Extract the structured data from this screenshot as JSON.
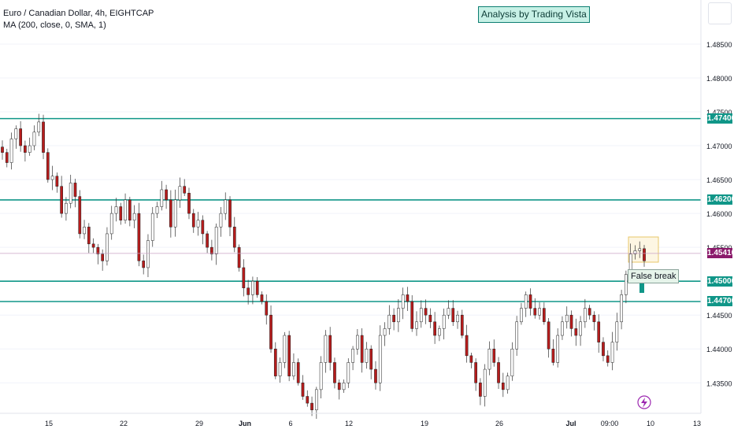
{
  "header": {
    "symbol_title": "Euro / Canadian Dollar, 4h, EIGHTCAP",
    "indicator": "MA (200, close, 0, SMA, 1)",
    "badge": "Analysis by Trading Vista"
  },
  "annotation": {
    "false_break_label": "False break"
  },
  "colors": {
    "level_line": "#109688",
    "up": "#ffffff",
    "down": "#b71c1c",
    "current_price_bg": "#8b1a6b"
  },
  "icons": {
    "bolt": "lightning-icon",
    "arrow": "up-arrow-icon"
  },
  "chart_data": {
    "type": "candlestick",
    "ylim": [
      1.4305,
      1.4915
    ],
    "y_ticks": [
      1.435,
      1.44,
      1.445,
      1.45,
      1.455,
      1.46,
      1.465,
      1.47,
      1.475,
      1.48,
      1.485
    ],
    "y_tick_labels": [
      "1.43500",
      "1.44000",
      "1.44500",
      "1.45000",
      "1.45500",
      "1.46000",
      "1.46500",
      "1.47000",
      "1.47500",
      "1.48000",
      "1.48500"
    ],
    "x_tick_labels": [
      "15",
      "22",
      "29",
      "Jun",
      "6",
      "12",
      "19",
      "26",
      "Jul",
      "09:00",
      "10",
      "13"
    ],
    "levels": [
      {
        "value": 1.474,
        "label": "1.47400"
      },
      {
        "value": 1.462,
        "label": "1.46200"
      },
      {
        "value": 1.45,
        "label": "1.45000"
      },
      {
        "value": 1.447,
        "label": "1.44700"
      }
    ],
    "current_price": {
      "value": 1.4541,
      "label": "1.45410"
    },
    "closes": [
      1.469,
      1.4675,
      1.471,
      1.4725,
      1.47,
      1.469,
      1.47,
      1.472,
      1.4735,
      1.469,
      1.465,
      1.4655,
      1.464,
      1.46,
      1.4615,
      1.4645,
      1.4625,
      1.457,
      1.458,
      1.4555,
      1.455,
      1.454,
      1.453,
      1.457,
      1.46,
      1.461,
      1.459,
      1.462,
      1.459,
      1.46,
      1.453,
      1.452,
      1.456,
      1.46,
      1.461,
      1.4635,
      1.462,
      1.458,
      1.462,
      1.464,
      1.463,
      1.46,
      1.458,
      1.459,
      1.457,
      1.455,
      1.454,
      1.458,
      1.46,
      1.462,
      1.458,
      1.455,
      1.452,
      1.449,
      1.448,
      1.45,
      1.448,
      1.447,
      1.445,
      1.44,
      1.436,
      1.438,
      1.442,
      1.436,
      1.438,
      1.435,
      1.433,
      1.432,
      1.431,
      1.434,
      1.438,
      1.442,
      1.438,
      1.435,
      1.434,
      1.435,
      1.438,
      1.44,
      1.442,
      1.438,
      1.44,
      1.437,
      1.435,
      1.442,
      1.443,
      1.445,
      1.444,
      1.446,
      1.448,
      1.447,
      1.443,
      1.444,
      1.446,
      1.445,
      1.444,
      1.442,
      1.443,
      1.445,
      1.446,
      1.444,
      1.445,
      1.442,
      1.439,
      1.438,
      1.435,
      1.433,
      1.437,
      1.44,
      1.438,
      1.435,
      1.434,
      1.436,
      1.44,
      1.444,
      1.446,
      1.448,
      1.446,
      1.445,
      1.446,
      1.444,
      1.44,
      1.438,
      1.442,
      1.444,
      1.445,
      1.443,
      1.442,
      1.444,
      1.446,
      1.445,
      1.444,
      1.441,
      1.439,
      1.438,
      1.441,
      1.444,
      1.448,
      1.451,
      1.454,
      1.4545,
      1.4548,
      1.453
    ]
  }
}
